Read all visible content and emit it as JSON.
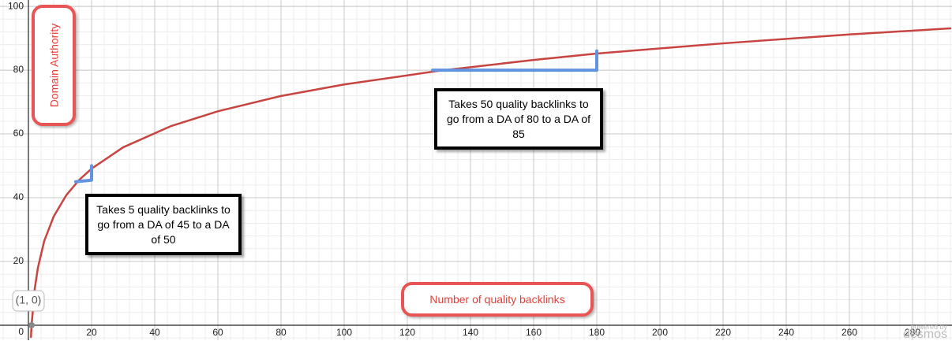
{
  "chart_data": {
    "type": "line",
    "xlim": [
      -9,
      292.5
    ],
    "ylim": [
      -4.7,
      102
    ],
    "xticks": [
      20,
      40,
      60,
      80,
      100,
      120,
      140,
      160,
      180,
      200,
      220,
      240,
      260,
      280
    ],
    "yticks": [
      0,
      20,
      40,
      60,
      80,
      100
    ],
    "grid": true,
    "x_label": "Number of quality backlinks",
    "y_label": "Domain Authority",
    "point": {
      "x": 1,
      "y": 0,
      "label": "(1, 0)"
    },
    "series": [
      {
        "color": "#c74440",
        "x": [
          0.8,
          1,
          2,
          3,
          5,
          8,
          12,
          16,
          20,
          30,
          45,
          60,
          80,
          100,
          130,
          160,
          180,
          220,
          260,
          292
        ],
        "values": [
          -3.7,
          0,
          11.4,
          18.0,
          26.4,
          34.1,
          40.8,
          45.5,
          49.1,
          55.8,
          62.4,
          67.1,
          71.9,
          75.5,
          79.8,
          83.2,
          85.2,
          88.4,
          91.2,
          93.1
        ]
      },
      {
        "color": "#6194e0",
        "x": [
          15,
          20,
          20
        ],
        "values": [
          45,
          45.5,
          50
        ]
      },
      {
        "color": "#6194e0",
        "x": [
          128,
          180,
          180
        ],
        "values": [
          80,
          80,
          86
        ]
      }
    ],
    "annotations": [
      "Takes 5 quality backlinks to go from a DA of 45 to a DA of 50",
      "Takes 50 quality backlinks to go from a DA of 80 to a DA of 85"
    ],
    "watermark": [
      "powered by",
      "desmos"
    ]
  }
}
